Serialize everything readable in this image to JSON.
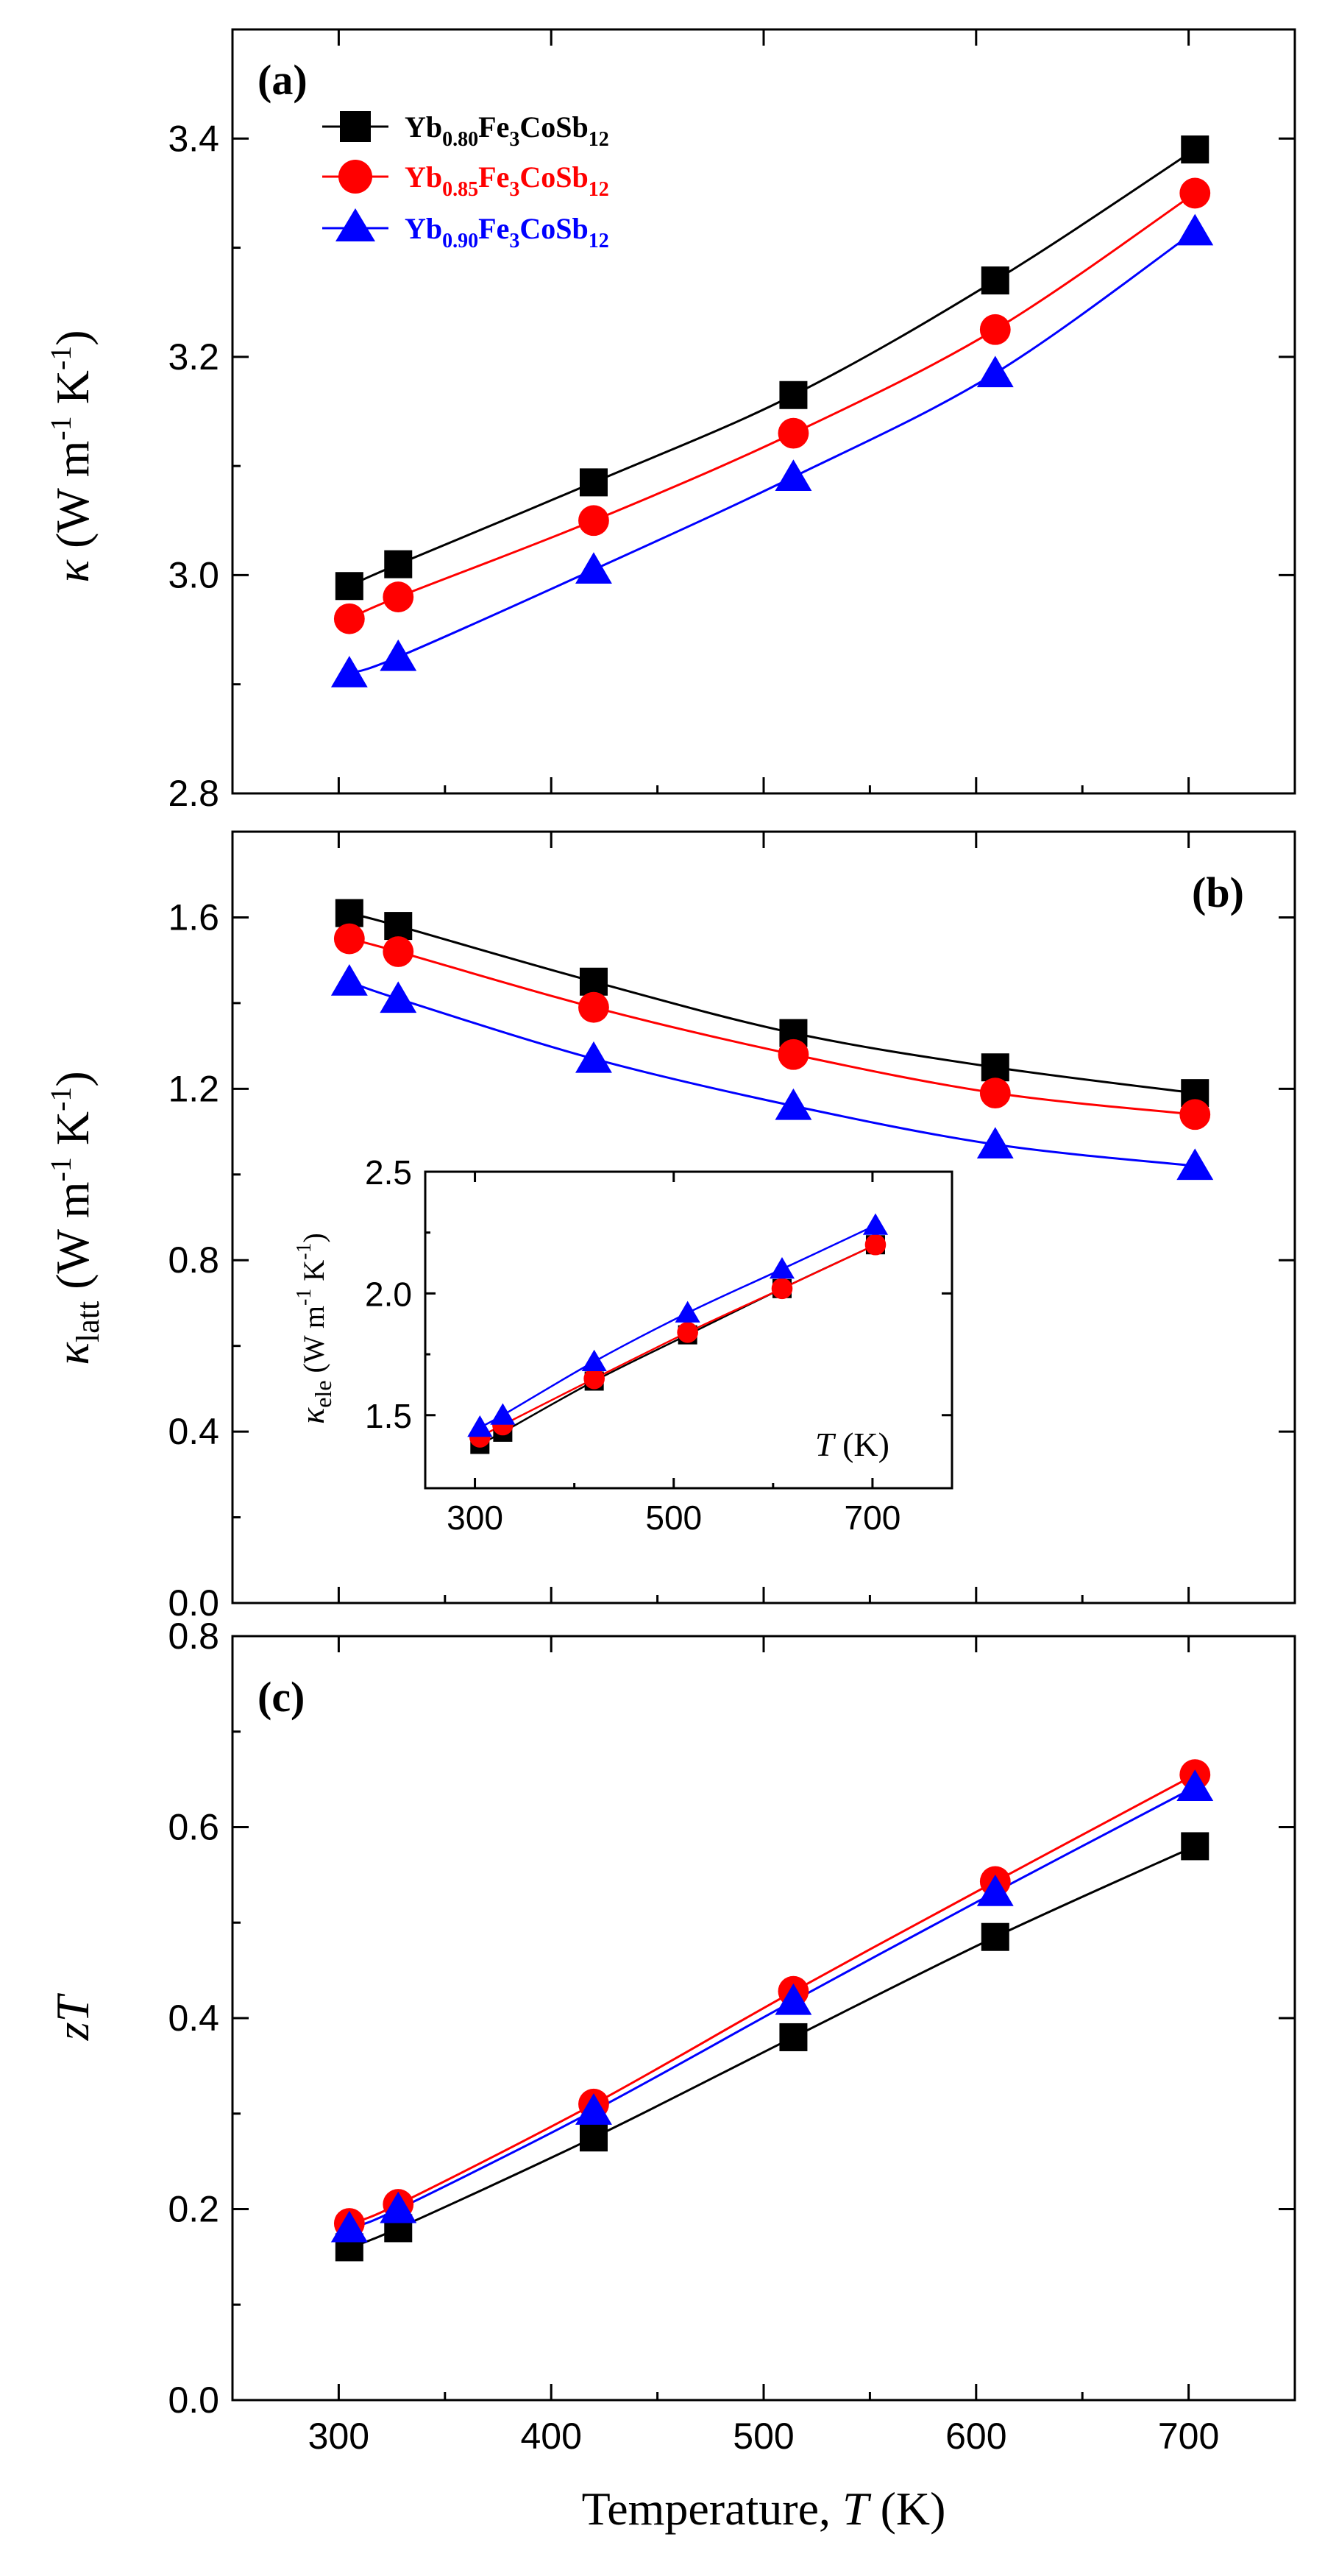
{
  "figure": {
    "xlabel_main": "Temperature, ",
    "xlabel_var": "T",
    "xlabel_unit": " (K)",
    "colors": {
      "s080": "#000000",
      "s085": "#ff0000",
      "s090": "#0000ff"
    }
  },
  "legend": [
    {
      "base": "Yb",
      "sub1": "0.80",
      "mid": "Fe",
      "sub2": "3",
      "tail": "CoSb",
      "sub3": "12"
    },
    {
      "base": "Yb",
      "sub1": "0.85",
      "mid": "Fe",
      "sub2": "3",
      "tail": "CoSb",
      "sub3": "12"
    },
    {
      "base": "Yb",
      "sub1": "0.90",
      "mid": "Fe",
      "sub2": "3",
      "tail": "CoSb",
      "sub3": "12"
    }
  ],
  "chart_data": [
    {
      "id": "a",
      "type": "line",
      "panel_label": "(a)",
      "ylabel_sym": "κ",
      "ylabel_unit": " (W m",
      "ylabel_sup1": "-1",
      "ylabel_mid": " K",
      "ylabel_sup2": "-1",
      "ylabel_close": ")",
      "xlim": [
        250,
        750
      ],
      "ylim": [
        2.8,
        3.5
      ],
      "yticks": [
        2.8,
        3.0,
        3.2,
        3.4
      ],
      "ytick_labels": [
        "2.8",
        "3.0",
        "3.2",
        "3.4"
      ],
      "xticks": [
        300,
        400,
        500,
        600,
        700
      ],
      "x": [
        305,
        328,
        420,
        514,
        609,
        703
      ],
      "series": [
        {
          "name": "Yb0.80Fe3CoSb12",
          "marker": "square",
          "values": [
            2.99,
            3.01,
            3.085,
            3.165,
            3.27,
            3.39
          ]
        },
        {
          "name": "Yb0.85Fe3CoSb12",
          "marker": "circle",
          "values": [
            2.96,
            2.98,
            3.05,
            3.13,
            3.225,
            3.35
          ]
        },
        {
          "name": "Yb0.90Fe3CoSb12",
          "marker": "triangle",
          "values": [
            2.91,
            2.925,
            3.005,
            3.09,
            3.185,
            3.315
          ]
        }
      ]
    },
    {
      "id": "b",
      "type": "line",
      "panel_label": "(b)",
      "ylabel_sym": "κ",
      "ylabel_sub": "latt",
      "ylabel_unit": " (W m",
      "ylabel_sup1": "-1",
      "ylabel_mid": " K",
      "ylabel_sup2": "-1",
      "ylabel_close": ")",
      "xlim": [
        250,
        750
      ],
      "ylim": [
        0.0,
        1.8
      ],
      "yticks": [
        0.0,
        0.4,
        0.8,
        1.2,
        1.6
      ],
      "ytick_labels": [
        "0.0",
        "0.4",
        "0.8",
        "1.2",
        "1.6"
      ],
      "xticks": [
        300,
        400,
        500,
        600,
        700
      ],
      "x": [
        305,
        328,
        420,
        514,
        609,
        703
      ],
      "series": [
        {
          "name": "Yb0.80Fe3CoSb12",
          "marker": "square",
          "values": [
            1.61,
            1.58,
            1.45,
            1.33,
            1.25,
            1.19
          ]
        },
        {
          "name": "Yb0.85Fe3CoSb12",
          "marker": "circle",
          "values": [
            1.55,
            1.52,
            1.39,
            1.28,
            1.19,
            1.14
          ]
        },
        {
          "name": "Yb0.90Fe3CoSb12",
          "marker": "triangle",
          "values": [
            1.45,
            1.41,
            1.27,
            1.16,
            1.07,
            1.02
          ]
        }
      ],
      "inset": {
        "type": "line",
        "ylabel_sym": "κ",
        "ylabel_sub": "ele",
        "ylabel_unit": " (W m",
        "ylabel_sup1": "-1",
        "ylabel_mid": " K",
        "ylabel_sup2": "-1",
        "ylabel_close": ")",
        "xlabel_var": "T",
        "xlabel_unit": " (K)",
        "xlim": [
          250,
          780
        ],
        "ylim": [
          1.2,
          2.5
        ],
        "yticks": [
          1.5,
          2.0,
          2.5
        ],
        "ytick_labels": [
          "1.5",
          "2.0",
          "2.5"
        ],
        "xticks": [
          300,
          500,
          700
        ],
        "xtick_labels": [
          "300",
          "500",
          "700"
        ],
        "x": [
          305,
          328,
          420,
          514,
          609,
          703
        ],
        "series": [
          {
            "name": "Yb0.80Fe3CoSb12",
            "marker": "square",
            "values": [
              1.38,
              1.43,
              1.64,
              1.83,
              2.02,
              2.2
            ]
          },
          {
            "name": "Yb0.85Fe3CoSb12",
            "marker": "circle",
            "values": [
              1.41,
              1.46,
              1.65,
              1.84,
              2.02,
              2.2
            ]
          },
          {
            "name": "Yb0.90Fe3CoSb12",
            "marker": "triangle",
            "values": [
              1.45,
              1.5,
              1.72,
              1.92,
              2.1,
              2.28
            ]
          }
        ]
      }
    },
    {
      "id": "c",
      "type": "line",
      "panel_label": "(c)",
      "ylabel_sym": "zT",
      "xlim": [
        250,
        750
      ],
      "ylim": [
        0.0,
        0.8
      ],
      "yticks": [
        0.0,
        0.2,
        0.4,
        0.6,
        0.8
      ],
      "ytick_labels": [
        "0.0",
        "0.2",
        "0.4",
        "0.6",
        "0.8"
      ],
      "xticks": [
        300,
        400,
        500,
        600,
        700
      ],
      "xtick_labels": [
        "300",
        "400",
        "500",
        "600",
        "700"
      ],
      "x": [
        305,
        328,
        420,
        514,
        609,
        703
      ],
      "series": [
        {
          "name": "Yb0.80Fe3CoSb12",
          "marker": "square",
          "values": [
            0.16,
            0.18,
            0.275,
            0.38,
            0.485,
            0.58
          ]
        },
        {
          "name": "Yb0.85Fe3CoSb12",
          "marker": "circle",
          "values": [
            0.185,
            0.205,
            0.31,
            0.428,
            0.543,
            0.655
          ]
        },
        {
          "name": "Yb0.90Fe3CoSb12",
          "marker": "triangle",
          "values": [
            0.18,
            0.2,
            0.303,
            0.418,
            0.532,
            0.642
          ]
        }
      ]
    }
  ]
}
